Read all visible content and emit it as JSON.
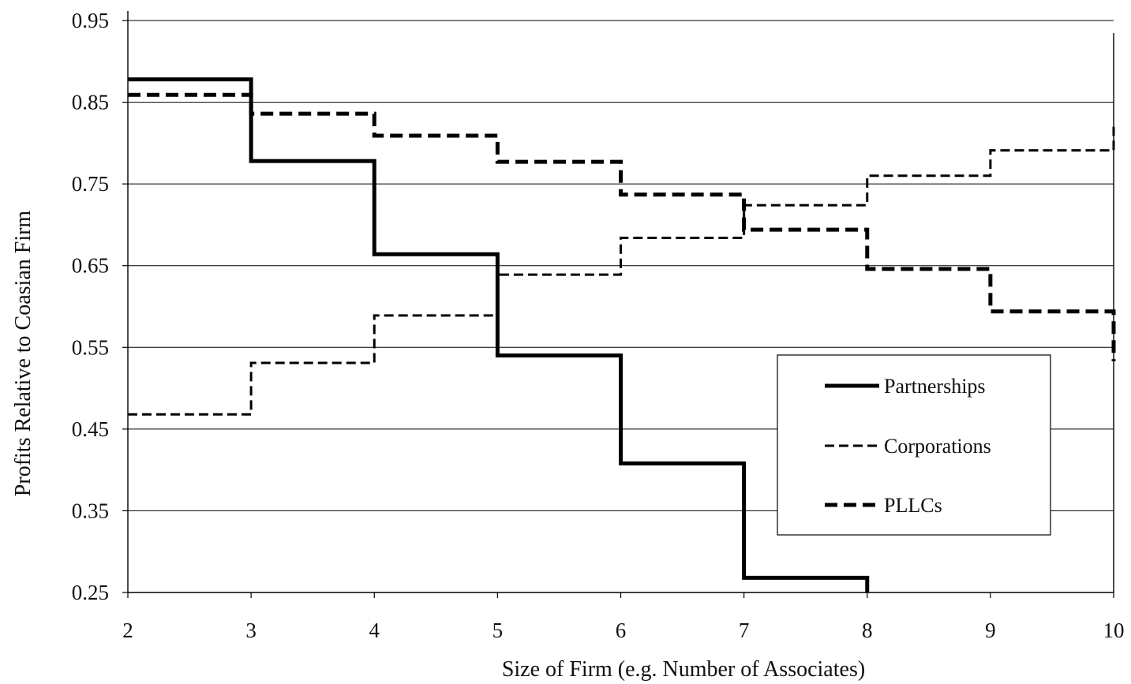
{
  "chart_data": {
    "type": "line",
    "step": true,
    "title": "",
    "xlabel": "Size of Firm (e.g. Number of Associates)",
    "ylabel": "Profits Relative to Coasian Firm",
    "xlim": [
      2,
      10
    ],
    "ylim": [
      0.25,
      0.95
    ],
    "x_ticks": [
      "2",
      "3",
      "4",
      "5",
      "6",
      "7",
      "8",
      "9",
      "10"
    ],
    "y_ticks": [
      "0.25",
      "0.35",
      "0.45",
      "0.55",
      "0.65",
      "0.75",
      "0.85",
      "0.95"
    ],
    "grid": "horizontal",
    "legend_position": "lower-right",
    "series": [
      {
        "name": "Partnerships",
        "style": "solid-thick",
        "color": "#000000",
        "values": [
          {
            "from": 2,
            "to": 3,
            "y": 0.878
          },
          {
            "from": 3,
            "to": 4,
            "y": 0.778
          },
          {
            "from": 4,
            "to": 5,
            "y": 0.664
          },
          {
            "from": 5,
            "to": 6,
            "y": 0.54
          },
          {
            "from": 6,
            "to": 7,
            "y": 0.408
          },
          {
            "from": 7,
            "to": 8,
            "y": 0.268
          },
          {
            "from": 8,
            "to": 8,
            "y": 0.25
          }
        ]
      },
      {
        "name": "Corporations",
        "style": "dashed-thin",
        "color": "#000000",
        "values": [
          {
            "from": 2,
            "to": 3,
            "y": 0.468
          },
          {
            "from": 3,
            "to": 4,
            "y": 0.531
          },
          {
            "from": 4,
            "to": 5,
            "y": 0.589
          },
          {
            "from": 5,
            "to": 6,
            "y": 0.639
          },
          {
            "from": 6,
            "to": 7,
            "y": 0.684
          },
          {
            "from": 7,
            "to": 8,
            "y": 0.724
          },
          {
            "from": 8,
            "to": 9,
            "y": 0.76
          },
          {
            "from": 9,
            "to": 10,
            "y": 0.791
          },
          {
            "from": 10,
            "to": 10,
            "y": 0.82
          }
        ]
      },
      {
        "name": "PLLCs",
        "style": "dashed-thick",
        "color": "#000000",
        "values": [
          {
            "from": 2,
            "to": 3,
            "y": 0.859
          },
          {
            "from": 3,
            "to": 4,
            "y": 0.836
          },
          {
            "from": 4,
            "to": 5,
            "y": 0.809
          },
          {
            "from": 5,
            "to": 6,
            "y": 0.777
          },
          {
            "from": 6,
            "to": 7,
            "y": 0.737
          },
          {
            "from": 7,
            "to": 8,
            "y": 0.694
          },
          {
            "from": 8,
            "to": 9,
            "y": 0.646
          },
          {
            "from": 9,
            "to": 10,
            "y": 0.594
          },
          {
            "from": 10,
            "to": 10,
            "y": 0.533
          }
        ]
      }
    ]
  }
}
